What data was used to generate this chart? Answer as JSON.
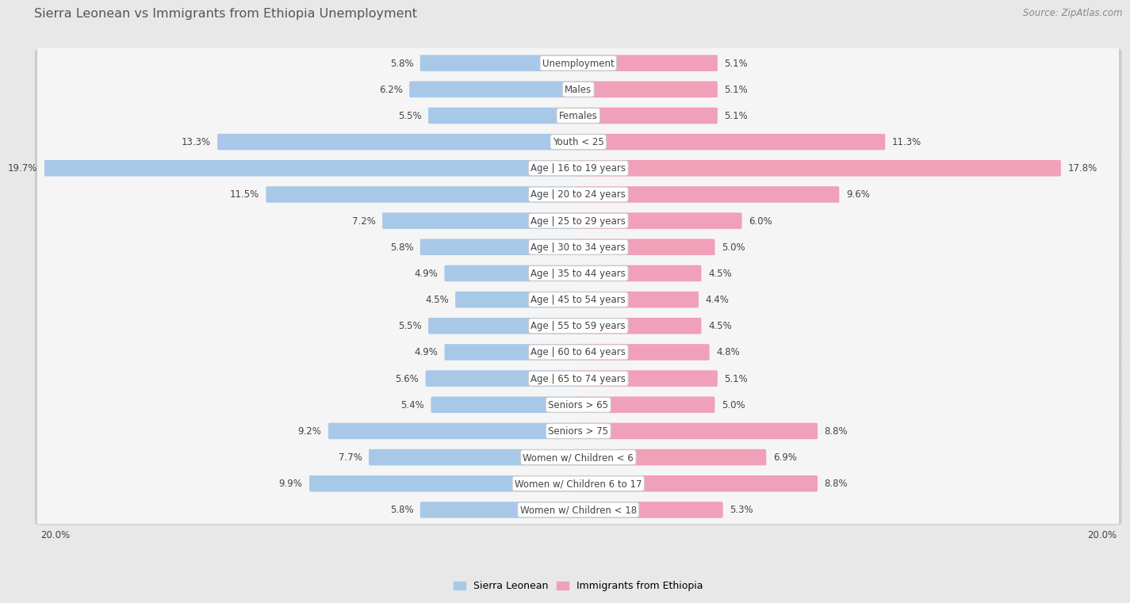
{
  "title": "Sierra Leonean vs Immigrants from Ethiopia Unemployment",
  "source": "Source: ZipAtlas.com",
  "categories": [
    "Unemployment",
    "Males",
    "Females",
    "Youth < 25",
    "Age | 16 to 19 years",
    "Age | 20 to 24 years",
    "Age | 25 to 29 years",
    "Age | 30 to 34 years",
    "Age | 35 to 44 years",
    "Age | 45 to 54 years",
    "Age | 55 to 59 years",
    "Age | 60 to 64 years",
    "Age | 65 to 74 years",
    "Seniors > 65",
    "Seniors > 75",
    "Women w/ Children < 6",
    "Women w/ Children 6 to 17",
    "Women w/ Children < 18"
  ],
  "sierra_leone": [
    5.8,
    6.2,
    5.5,
    13.3,
    19.7,
    11.5,
    7.2,
    5.8,
    4.9,
    4.5,
    5.5,
    4.9,
    5.6,
    5.4,
    9.2,
    7.7,
    9.9,
    5.8
  ],
  "ethiopia": [
    5.1,
    5.1,
    5.1,
    11.3,
    17.8,
    9.6,
    6.0,
    5.0,
    4.5,
    4.4,
    4.5,
    4.8,
    5.1,
    5.0,
    8.8,
    6.9,
    8.8,
    5.3
  ],
  "sierra_leone_color": "#a8c8e8",
  "ethiopia_color": "#f0a0b8",
  "sierra_leone_label": "Sierra Leonean",
  "ethiopia_label": "Immigrants from Ethiopia",
  "max_val": 20.0,
  "bg_color": "#e8e8e8",
  "label_fontsize": 8.5,
  "title_fontsize": 11.5,
  "source_fontsize": 8.5
}
